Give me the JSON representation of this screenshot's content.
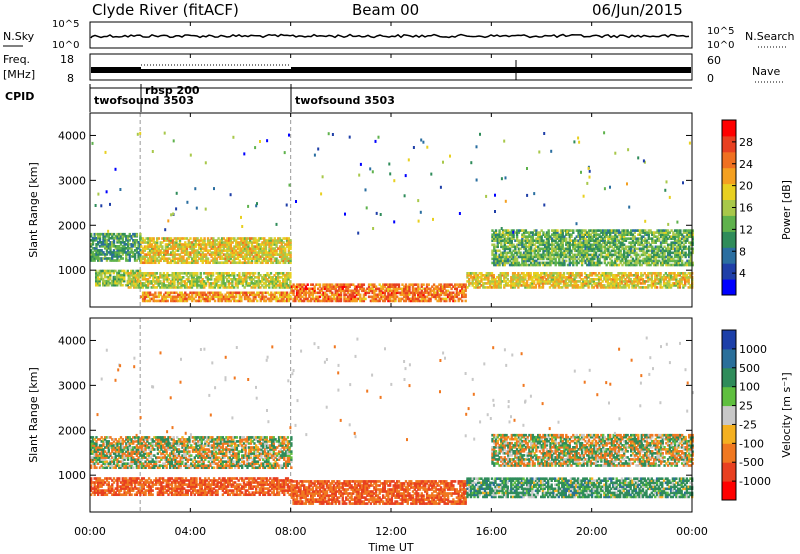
{
  "header": {
    "station": "Clyde River (fitACF)",
    "beam": "Beam 00",
    "date": "06/Jun/2015"
  },
  "top_panels": {
    "nsky_label": "N.Sky",
    "nsky_ticks": [
      "10^5",
      "10^0"
    ],
    "nsearch_label": "N.Search",
    "nsearch_ticks": [
      "10^5",
      "10^0"
    ],
    "freq_label_1": "Freq.",
    "freq_label_2": "[MHz]",
    "freq_ticks": [
      "18",
      "8"
    ],
    "nave_label": "Nave",
    "nave_ticks": [
      "60",
      "0"
    ],
    "cpid_label": "CPID",
    "cpid_segments": [
      {
        "name": "twofsound 3503",
        "start_h": 0,
        "end_h": 2
      },
      {
        "name": "rbsp 200",
        "start_h": 2,
        "end_h": 8
      },
      {
        "name": "twofsound 3503",
        "start_h": 8,
        "end_h": 24
      }
    ],
    "cpid_extra": "twofsound 3503"
  },
  "x_axis": {
    "ticks": [
      "00:00",
      "04:00",
      "08:00",
      "12:00",
      "16:00",
      "20:00",
      "00:00"
    ],
    "label": "Time UT"
  },
  "chart_data": [
    {
      "type": "heatmap",
      "panel": "power",
      "xlabel": "Time UT",
      "ylabel": "Slant Range [km]",
      "xlim_hours": [
        0,
        24
      ],
      "ylim_km": [
        180,
        4500
      ],
      "yticks": [
        1000,
        2000,
        3000,
        4000
      ],
      "colorbar": {
        "label": "Power [dB]",
        "ticks": [
          "28",
          "24",
          "20",
          "16",
          "12",
          "8",
          "4"
        ],
        "values": [
          28,
          24,
          20,
          16,
          12,
          8,
          4
        ],
        "range": [
          0,
          30
        ],
        "colors": [
          "#0000ff",
          "#1f3fa8",
          "#2a6ea0",
          "#2f8c5a",
          "#5fb24c",
          "#a8c84a",
          "#e8d020",
          "#f4a020",
          "#f07020",
          "#e84020",
          "#ff0000"
        ]
      },
      "bands": [
        {
          "t0": 0,
          "t1": 2,
          "r0": 1200,
          "r1": 1800,
          "level": 10
        },
        {
          "t0": 0.2,
          "t1": 2,
          "r0": 650,
          "r1": 1000,
          "level": 14
        },
        {
          "t0": 2,
          "t1": 8,
          "r0": 1150,
          "r1": 1700,
          "level": 18
        },
        {
          "t0": 1.5,
          "t1": 8,
          "r0": 600,
          "r1": 950,
          "level": 16
        },
        {
          "t0": 2,
          "t1": 8,
          "r0": 300,
          "r1": 500,
          "level": 22
        },
        {
          "t0": 8,
          "t1": 15,
          "r0": 300,
          "r1": 700,
          "level": 24
        },
        {
          "t0": 15,
          "t1": 24,
          "r0": 600,
          "r1": 950,
          "level": 18
        },
        {
          "t0": 16,
          "t1": 24,
          "r0": 1100,
          "r1": 1900,
          "level": 12
        }
      ]
    },
    {
      "type": "heatmap",
      "panel": "velocity",
      "xlabel": "Time UT",
      "ylabel": "Slant Range [km]",
      "xlim_hours": [
        0,
        24
      ],
      "ylim_km": [
        180,
        4500
      ],
      "yticks": [
        1000,
        2000,
        3000,
        4000
      ],
      "colorbar": {
        "label": "Velocity [m s⁻¹]",
        "ticks": [
          "1000",
          "500",
          "100",
          "25",
          "-25",
          "-100",
          "-500",
          "-1000"
        ],
        "values": [
          1000,
          500,
          100,
          25,
          -25,
          -100,
          -500,
          -1000
        ],
        "colors": [
          "#1c3fa8",
          "#2a6f9a",
          "#2f8c5a",
          "#5fbf3f",
          "#c8c8c8",
          "#f4b020",
          "#f07820",
          "#e84020",
          "#ff0000"
        ]
      },
      "bands": [
        {
          "t0": 0,
          "t1": 8,
          "r0": 1150,
          "r1": 1850,
          "vel": 0
        },
        {
          "t0": 0,
          "t1": 8,
          "r0": 550,
          "r1": 950,
          "vel": -300
        },
        {
          "t0": 8,
          "t1": 15,
          "r0": 350,
          "r1": 850,
          "vel": -300
        },
        {
          "t0": 15,
          "t1": 24,
          "r0": 500,
          "r1": 950,
          "vel": 150
        },
        {
          "t0": 16,
          "t1": 24,
          "r0": 1200,
          "r1": 1900,
          "vel": 0
        }
      ]
    }
  ]
}
